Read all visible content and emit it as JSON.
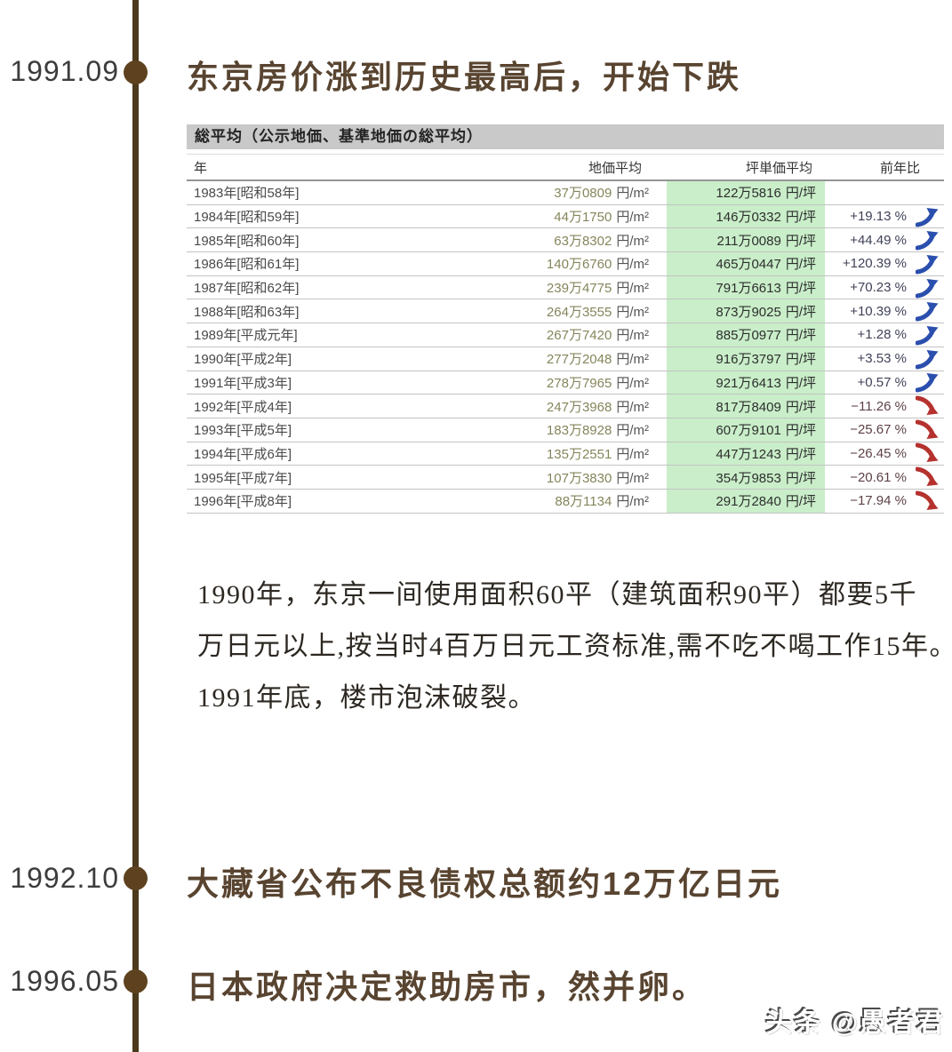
{
  "timeline": {
    "entries": [
      {
        "date": "1991.09",
        "title": "东京房价涨到历史最高后，开始下跌"
      },
      {
        "date": "1992.10",
        "title": "大藏省公布不良债权总额约12万亿日元"
      },
      {
        "date": "1996.05",
        "title": "日本政府决定救助房市，然并卵。"
      }
    ]
  },
  "table": {
    "title": "総平均（公示地価、基準地価の総平均）",
    "columns": [
      "年",
      "地価平均",
      "坪単価平均",
      "前年比"
    ],
    "land_unit": "円/m²",
    "tsubo_unit": "円/坪",
    "rows": [
      {
        "year": "1983年[昭和58年]",
        "land": "37万0809",
        "tsubo": "122万5816",
        "yoy": "",
        "trend": "none"
      },
      {
        "year": "1984年[昭和59年]",
        "land": "44万1750",
        "tsubo": "146万0332",
        "yoy": "+19.13 %",
        "trend": "up"
      },
      {
        "year": "1985年[昭和60年]",
        "land": "63万8302",
        "tsubo": "211万0089",
        "yoy": "+44.49 %",
        "trend": "up"
      },
      {
        "year": "1986年[昭和61年]",
        "land": "140万6760",
        "tsubo": "465万0447",
        "yoy": "+120.39 %",
        "trend": "up"
      },
      {
        "year": "1987年[昭和62年]",
        "land": "239万4775",
        "tsubo": "791万6613",
        "yoy": "+70.23 %",
        "trend": "up"
      },
      {
        "year": "1988年[昭和63年]",
        "land": "264万3555",
        "tsubo": "873万9025",
        "yoy": "+10.39 %",
        "trend": "up"
      },
      {
        "year": "1989年[平成元年]",
        "land": "267万7420",
        "tsubo": "885万0977",
        "yoy": "+1.28 %",
        "trend": "up"
      },
      {
        "year": "1990年[平成2年]",
        "land": "277万2048",
        "tsubo": "916万3797",
        "yoy": "+3.53 %",
        "trend": "up"
      },
      {
        "year": "1991年[平成3年]",
        "land": "278万7965",
        "tsubo": "921万6413",
        "yoy": "+0.57 %",
        "trend": "up"
      },
      {
        "year": "1992年[平成4年]",
        "land": "247万3968",
        "tsubo": "817万8409",
        "yoy": "−11.26 %",
        "trend": "down"
      },
      {
        "year": "1993年[平成5年]",
        "land": "183万8928",
        "tsubo": "607万9101",
        "yoy": "−25.67 %",
        "trend": "down"
      },
      {
        "year": "1994年[平成6年]",
        "land": "135万2551",
        "tsubo": "447万1243",
        "yoy": "−26.45 %",
        "trend": "down"
      },
      {
        "year": "1995年[平成7年]",
        "land": "107万3830",
        "tsubo": "354万9853",
        "yoy": "−20.61 %",
        "trend": "down"
      },
      {
        "year": "1996年[平成8年]",
        "land": "88万1134",
        "tsubo": "291万2840",
        "yoy": "−17.94 %",
        "trend": "down"
      }
    ]
  },
  "paragraph": {
    "lines": [
      "1990年，东京一间使用面积60平（建筑面积90平）都要5千",
      "万日元以上,按当时4百万日元工资标准,需不吃不喝工作15年。",
      "1991年底，楼市泡沫破裂。"
    ]
  },
  "watermark": "头条 @愚者君",
  "colors": {
    "timeline_line": "#4b3a1c",
    "timeline_dot": "#5e421f",
    "heading_brown": "#584430",
    "table_title_bg": "#c9c9c9",
    "tsubo_col_bg": "#c9eec9",
    "land_value": "#85855c",
    "up_arrow_blue": "#2b4fad",
    "down_arrow_red": "#b5322e"
  }
}
